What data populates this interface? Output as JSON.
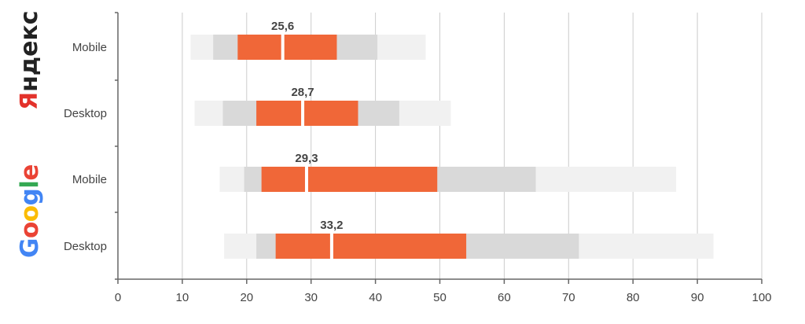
{
  "logos": {
    "yandex": {
      "text": "Яндекс",
      "accent_color": "#e3322b",
      "color": "#222222"
    },
    "google": {
      "letters": [
        "G",
        "o",
        "o",
        "g",
        "l",
        "e"
      ],
      "colors": [
        "#4285f4",
        "#ea4335",
        "#fbbc05",
        "#4285f4",
        "#34a853",
        "#ea4335"
      ]
    }
  },
  "chart_data": {
    "type": "bar",
    "orientation": "horizontal",
    "style": "layered range bars (outer range, inner range, core range) with median marker",
    "categories": [
      "Mobile",
      "Desktop",
      "Mobile",
      "Desktop"
    ],
    "groups": [
      {
        "name": "Яндекс",
        "categories": [
          "Mobile",
          "Desktop"
        ]
      },
      {
        "name": "Google",
        "categories": [
          "Mobile",
          "Desktop"
        ]
      }
    ],
    "rows": [
      {
        "label": "Mobile",
        "outer": [
          11.3,
          47.8
        ],
        "inner": [
          14.8,
          40.3
        ],
        "core": [
          18.6,
          34.0
        ],
        "median": 25.6,
        "median_label": "25,6"
      },
      {
        "label": "Desktop",
        "outer": [
          11.9,
          51.7
        ],
        "inner": [
          16.3,
          43.7
        ],
        "core": [
          21.5,
          37.3
        ],
        "median": 28.7,
        "median_label": "28,7"
      },
      {
        "label": "Mobile",
        "outer": [
          15.8,
          86.7
        ],
        "inner": [
          19.6,
          64.9
        ],
        "core": [
          22.3,
          49.6
        ],
        "median": 29.3,
        "median_label": "29,3"
      },
      {
        "label": "Desktop",
        "outer": [
          16.5,
          92.5
        ],
        "inner": [
          21.5,
          71.6
        ],
        "core": [
          24.5,
          54.1
        ],
        "median": 33.2,
        "median_label": "33,2"
      }
    ],
    "xlim": [
      0,
      100
    ],
    "xticks": [
      "0",
      "10",
      "20",
      "30",
      "40",
      "50",
      "60",
      "70",
      "80",
      "90",
      "100"
    ],
    "grid": true,
    "colors": {
      "outer": "#f1f1f1",
      "inner": "#d9d9d9",
      "core": "#f06738",
      "grid": "#cccccc",
      "axis": "#666666",
      "text": "#444444"
    }
  }
}
